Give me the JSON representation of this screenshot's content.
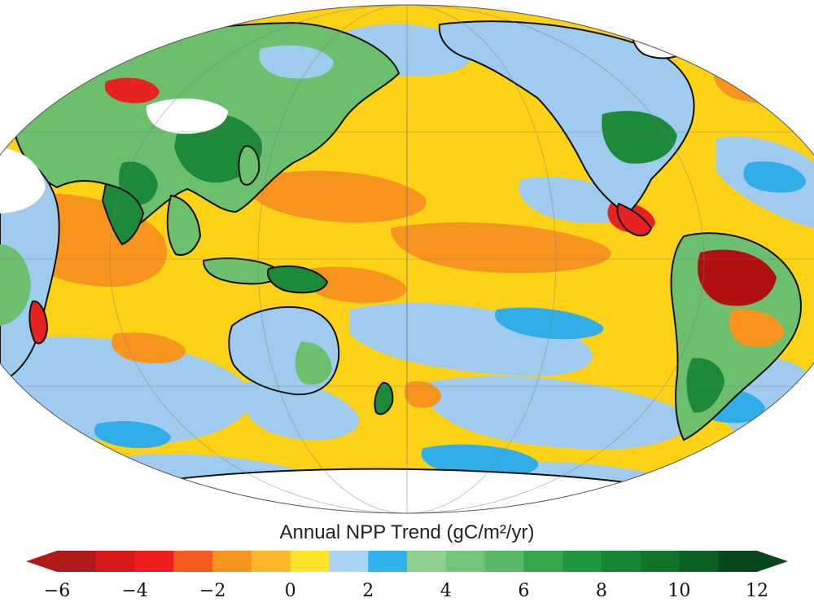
{
  "map": {
    "projection": "Mollweide",
    "center_longitude": "Pacific",
    "graticule": true,
    "palette": {
      "strong_decline": "#b01010",
      "decline": "#e52420",
      "slight_decline": "#f7941d",
      "near_zero_negative": "#fcd116",
      "ocean_positive": "#9fcbef",
      "ocean_positive_strong": "#31aee8",
      "land_positive": "#6cbf6c",
      "land_positive_strong": "#1c8a3a",
      "land_positive_very_strong": "#0b5a26",
      "no_data": "#ffffff",
      "coastline": "#111111"
    }
  },
  "colorbar": {
    "title": "Annual NPP Trend (gC/m²/yr)",
    "min": -6,
    "max": 12,
    "extend": "both",
    "bins": [
      {
        "from": -6,
        "to": -5,
        "color": "#b11a1a"
      },
      {
        "from": -5,
        "to": -4,
        "color": "#d51717"
      },
      {
        "from": -4,
        "to": -3,
        "color": "#ee1c1c"
      },
      {
        "from": -3,
        "to": -2,
        "color": "#f35a1b"
      },
      {
        "from": -2,
        "to": -1,
        "color": "#f7941d"
      },
      {
        "from": -1,
        "to": 0,
        "color": "#fbb829"
      },
      {
        "from": 0,
        "to": 1,
        "color": "#fde428"
      },
      {
        "from": 1,
        "to": 2,
        "color": "#a9d4f5"
      },
      {
        "from": 2,
        "to": 3,
        "color": "#2fb3ee"
      },
      {
        "from": 3,
        "to": 4,
        "color": "#8cd18f"
      },
      {
        "from": 4,
        "to": 5,
        "color": "#72c47a"
      },
      {
        "from": 5,
        "to": 6,
        "color": "#57b865"
      },
      {
        "from": 6,
        "to": 7,
        "color": "#35a64c"
      },
      {
        "from": 7,
        "to": 8,
        "color": "#1f973f"
      },
      {
        "from": 8,
        "to": 9,
        "color": "#168535"
      },
      {
        "from": 9,
        "to": 10,
        "color": "#10742c"
      },
      {
        "from": 10,
        "to": 11,
        "color": "#0b6124"
      },
      {
        "from": 11,
        "to": 12,
        "color": "#07481b"
      }
    ],
    "ticks": [
      "−6",
      "−4",
      "−2",
      "0",
      "2",
      "4",
      "6",
      "8",
      "10",
      "12"
    ],
    "tick_values": [
      -6,
      -4,
      -2,
      0,
      2,
      4,
      6,
      8,
      10,
      12
    ]
  }
}
